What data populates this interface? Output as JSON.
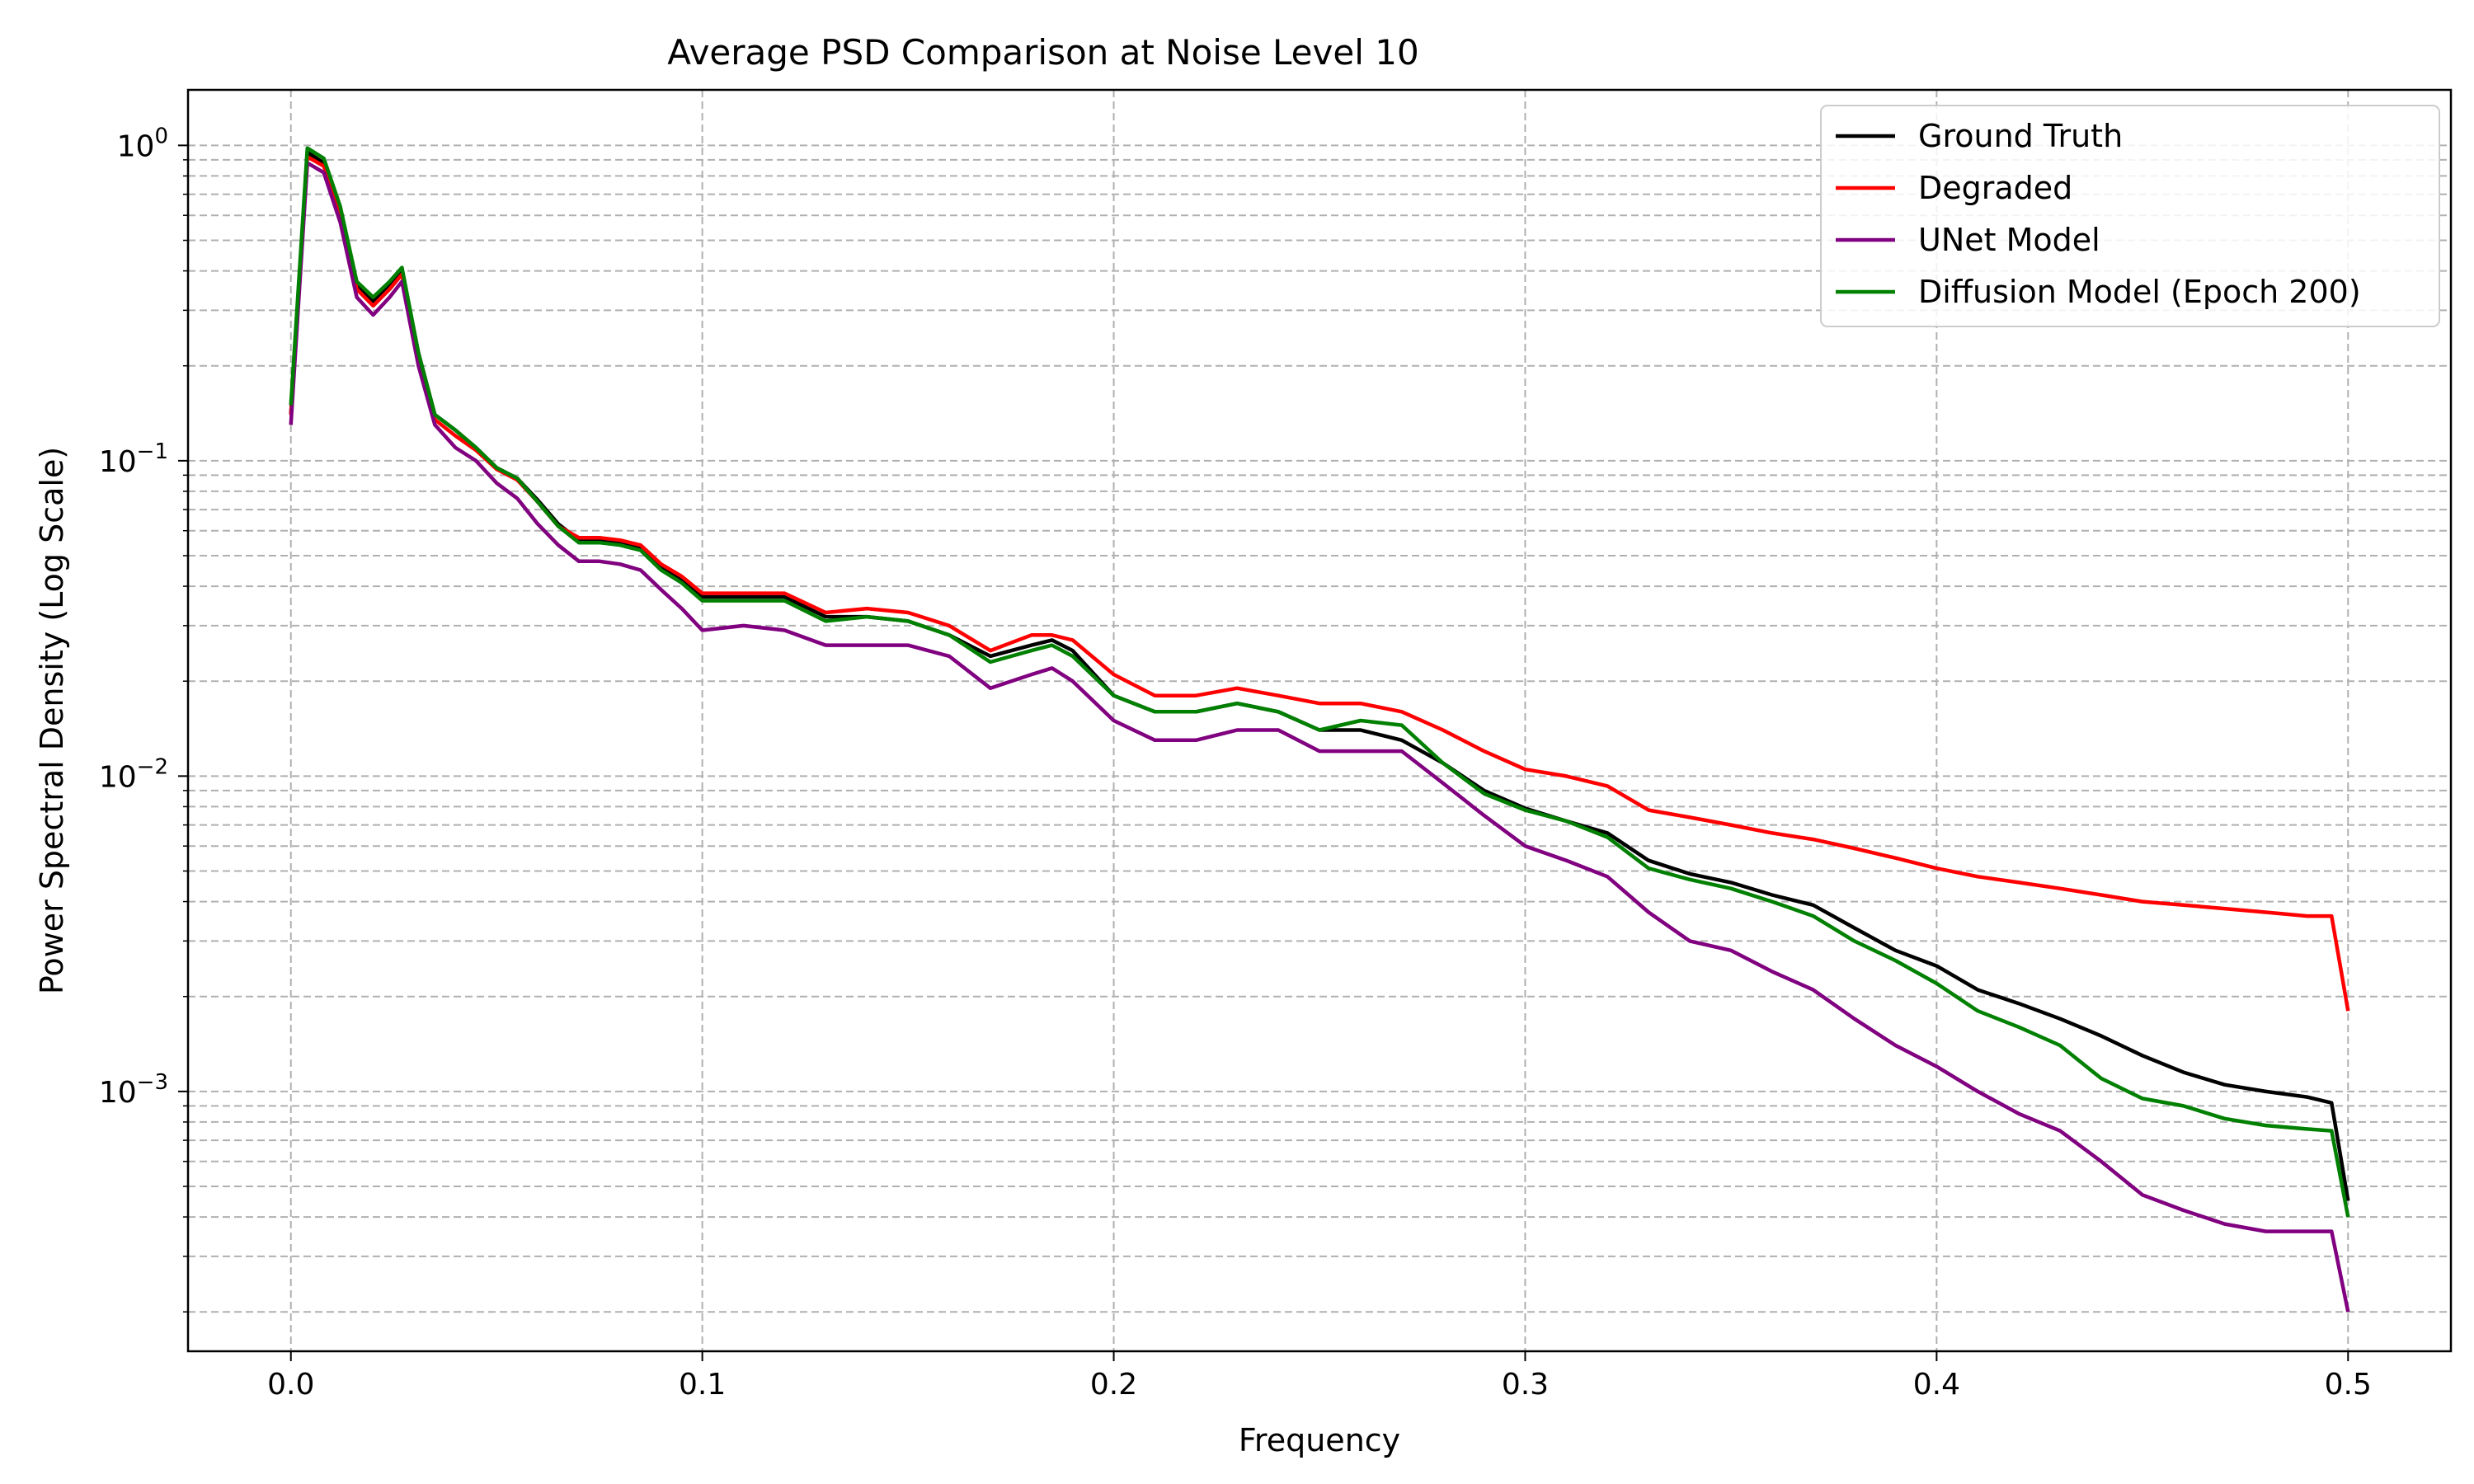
{
  "chart_data": {
    "type": "line",
    "title": "Average PSD Comparison at Noise Level 10",
    "xlabel": "Frequency",
    "ylabel": "Power Spectral Density (Log Scale)",
    "xlim": [
      -0.025,
      0.525
    ],
    "ylim": [
      0.00015,
      1.5
    ],
    "yscale": "log",
    "grid": true,
    "legend_position": "top-right",
    "x_ticks": [
      {
        "value": 0.0,
        "label": "0.0"
      },
      {
        "value": 0.1,
        "label": "0.1"
      },
      {
        "value": 0.2,
        "label": "0.2"
      },
      {
        "value": 0.3,
        "label": "0.3"
      },
      {
        "value": 0.4,
        "label": "0.4"
      },
      {
        "value": 0.5,
        "label": "0.5"
      }
    ],
    "y_ticks": [
      {
        "value": 1,
        "base": "10",
        "exp": "0"
      },
      {
        "value": 0.1,
        "base": "10",
        "exp": "−1"
      },
      {
        "value": 0.01,
        "base": "10",
        "exp": "−2"
      },
      {
        "value": 0.001,
        "base": "10",
        "exp": "−3"
      }
    ],
    "series": [
      {
        "name": "Ground Truth",
        "color": "#000000",
        "points": [
          [
            0.0,
            0.14
          ],
          [
            0.004,
            0.95
          ],
          [
            0.008,
            0.88
          ],
          [
            0.012,
            0.62
          ],
          [
            0.016,
            0.36
          ],
          [
            0.02,
            0.32
          ],
          [
            0.024,
            0.36
          ],
          [
            0.027,
            0.4
          ],
          [
            0.031,
            0.22
          ],
          [
            0.035,
            0.14
          ],
          [
            0.04,
            0.125
          ],
          [
            0.045,
            0.11
          ],
          [
            0.05,
            0.095
          ],
          [
            0.055,
            0.088
          ],
          [
            0.06,
            0.075
          ],
          [
            0.065,
            0.063
          ],
          [
            0.07,
            0.056
          ],
          [
            0.075,
            0.056
          ],
          [
            0.08,
            0.055
          ],
          [
            0.085,
            0.053
          ],
          [
            0.09,
            0.046
          ],
          [
            0.095,
            0.042
          ],
          [
            0.1,
            0.037
          ],
          [
            0.11,
            0.037
          ],
          [
            0.12,
            0.037
          ],
          [
            0.13,
            0.032
          ],
          [
            0.14,
            0.032
          ],
          [
            0.15,
            0.031
          ],
          [
            0.16,
            0.028
          ],
          [
            0.17,
            0.024
          ],
          [
            0.18,
            0.026
          ],
          [
            0.185,
            0.027
          ],
          [
            0.19,
            0.025
          ],
          [
            0.2,
            0.018
          ],
          [
            0.21,
            0.016
          ],
          [
            0.22,
            0.016
          ],
          [
            0.23,
            0.017
          ],
          [
            0.24,
            0.016
          ],
          [
            0.25,
            0.014
          ],
          [
            0.26,
            0.014
          ],
          [
            0.27,
            0.013
          ],
          [
            0.28,
            0.011
          ],
          [
            0.29,
            0.009
          ],
          [
            0.3,
            0.0079
          ],
          [
            0.31,
            0.0072
          ],
          [
            0.32,
            0.0066
          ],
          [
            0.33,
            0.0054
          ],
          [
            0.34,
            0.0049
          ],
          [
            0.35,
            0.0046
          ],
          [
            0.36,
            0.0042
          ],
          [
            0.37,
            0.0039
          ],
          [
            0.38,
            0.0033
          ],
          [
            0.39,
            0.0028
          ],
          [
            0.4,
            0.0025
          ],
          [
            0.41,
            0.0021
          ],
          [
            0.42,
            0.0019
          ],
          [
            0.43,
            0.0017
          ],
          [
            0.44,
            0.0015
          ],
          [
            0.45,
            0.0013
          ],
          [
            0.46,
            0.00115
          ],
          [
            0.47,
            0.00105
          ],
          [
            0.48,
            0.001
          ],
          [
            0.49,
            0.00096
          ],
          [
            0.496,
            0.00092
          ],
          [
            0.5,
            0.00045
          ]
        ]
      },
      {
        "name": "Degraded",
        "color": "#ff0000",
        "points": [
          [
            0.0,
            0.14
          ],
          [
            0.004,
            0.92
          ],
          [
            0.008,
            0.86
          ],
          [
            0.012,
            0.6
          ],
          [
            0.016,
            0.35
          ],
          [
            0.02,
            0.31
          ],
          [
            0.024,
            0.35
          ],
          [
            0.027,
            0.39
          ],
          [
            0.031,
            0.21
          ],
          [
            0.035,
            0.135
          ],
          [
            0.04,
            0.12
          ],
          [
            0.045,
            0.108
          ],
          [
            0.05,
            0.094
          ],
          [
            0.055,
            0.087
          ],
          [
            0.06,
            0.074
          ],
          [
            0.065,
            0.062
          ],
          [
            0.07,
            0.057
          ],
          [
            0.075,
            0.057
          ],
          [
            0.08,
            0.056
          ],
          [
            0.085,
            0.054
          ],
          [
            0.09,
            0.047
          ],
          [
            0.095,
            0.043
          ],
          [
            0.1,
            0.038
          ],
          [
            0.11,
            0.038
          ],
          [
            0.12,
            0.038
          ],
          [
            0.13,
            0.033
          ],
          [
            0.14,
            0.034
          ],
          [
            0.15,
            0.033
          ],
          [
            0.16,
            0.03
          ],
          [
            0.17,
            0.025
          ],
          [
            0.18,
            0.028
          ],
          [
            0.185,
            0.028
          ],
          [
            0.19,
            0.027
          ],
          [
            0.2,
            0.021
          ],
          [
            0.21,
            0.018
          ],
          [
            0.22,
            0.018
          ],
          [
            0.23,
            0.019
          ],
          [
            0.24,
            0.018
          ],
          [
            0.25,
            0.017
          ],
          [
            0.26,
            0.017
          ],
          [
            0.27,
            0.016
          ],
          [
            0.28,
            0.014
          ],
          [
            0.29,
            0.012
          ],
          [
            0.3,
            0.0105
          ],
          [
            0.31,
            0.01
          ],
          [
            0.32,
            0.0093
          ],
          [
            0.33,
            0.0078
          ],
          [
            0.34,
            0.0074
          ],
          [
            0.35,
            0.007
          ],
          [
            0.36,
            0.0066
          ],
          [
            0.37,
            0.0063
          ],
          [
            0.38,
            0.0059
          ],
          [
            0.39,
            0.0055
          ],
          [
            0.4,
            0.0051
          ],
          [
            0.41,
            0.0048
          ],
          [
            0.42,
            0.0046
          ],
          [
            0.43,
            0.0044
          ],
          [
            0.44,
            0.0042
          ],
          [
            0.45,
            0.004
          ],
          [
            0.46,
            0.0039
          ],
          [
            0.47,
            0.0038
          ],
          [
            0.48,
            0.0037
          ],
          [
            0.49,
            0.0036
          ],
          [
            0.496,
            0.0036
          ],
          [
            0.5,
            0.0018
          ]
        ]
      },
      {
        "name": "UNet Model",
        "color": "#800080",
        "points": [
          [
            0.0,
            0.13
          ],
          [
            0.004,
            0.88
          ],
          [
            0.008,
            0.82
          ],
          [
            0.012,
            0.57
          ],
          [
            0.016,
            0.33
          ],
          [
            0.02,
            0.29
          ],
          [
            0.024,
            0.33
          ],
          [
            0.027,
            0.37
          ],
          [
            0.031,
            0.2
          ],
          [
            0.035,
            0.13
          ],
          [
            0.04,
            0.11
          ],
          [
            0.045,
            0.1
          ],
          [
            0.05,
            0.085
          ],
          [
            0.055,
            0.076
          ],
          [
            0.06,
            0.063
          ],
          [
            0.065,
            0.054
          ],
          [
            0.07,
            0.048
          ],
          [
            0.075,
            0.048
          ],
          [
            0.08,
            0.047
          ],
          [
            0.085,
            0.045
          ],
          [
            0.09,
            0.039
          ],
          [
            0.095,
            0.034
          ],
          [
            0.1,
            0.029
          ],
          [
            0.11,
            0.03
          ],
          [
            0.12,
            0.029
          ],
          [
            0.13,
            0.026
          ],
          [
            0.14,
            0.026
          ],
          [
            0.15,
            0.026
          ],
          [
            0.16,
            0.024
          ],
          [
            0.17,
            0.019
          ],
          [
            0.18,
            0.021
          ],
          [
            0.185,
            0.022
          ],
          [
            0.19,
            0.02
          ],
          [
            0.2,
            0.015
          ],
          [
            0.21,
            0.013
          ],
          [
            0.22,
            0.013
          ],
          [
            0.23,
            0.014
          ],
          [
            0.24,
            0.014
          ],
          [
            0.25,
            0.012
          ],
          [
            0.26,
            0.012
          ],
          [
            0.27,
            0.012
          ],
          [
            0.28,
            0.0095
          ],
          [
            0.29,
            0.0075
          ],
          [
            0.3,
            0.006
          ],
          [
            0.31,
            0.0054
          ],
          [
            0.32,
            0.0048
          ],
          [
            0.33,
            0.0037
          ],
          [
            0.34,
            0.003
          ],
          [
            0.35,
            0.0028
          ],
          [
            0.36,
            0.0024
          ],
          [
            0.37,
            0.0021
          ],
          [
            0.38,
            0.0017
          ],
          [
            0.39,
            0.0014
          ],
          [
            0.4,
            0.0012
          ],
          [
            0.41,
            0.001
          ],
          [
            0.42,
            0.00085
          ],
          [
            0.43,
            0.00075
          ],
          [
            0.44,
            0.0006
          ],
          [
            0.45,
            0.00047
          ],
          [
            0.46,
            0.00042
          ],
          [
            0.47,
            0.00038
          ],
          [
            0.48,
            0.00036
          ],
          [
            0.49,
            0.00036
          ],
          [
            0.496,
            0.00036
          ],
          [
            0.5,
            0.0002
          ]
        ]
      },
      {
        "name": "Diffusion Model (Epoch 200)",
        "color": "#008000",
        "points": [
          [
            0.0,
            0.15
          ],
          [
            0.004,
            0.98
          ],
          [
            0.008,
            0.91
          ],
          [
            0.012,
            0.64
          ],
          [
            0.016,
            0.37
          ],
          [
            0.02,
            0.33
          ],
          [
            0.024,
            0.37
          ],
          [
            0.027,
            0.41
          ],
          [
            0.031,
            0.22
          ],
          [
            0.035,
            0.14
          ],
          [
            0.04,
            0.125
          ],
          [
            0.045,
            0.11
          ],
          [
            0.05,
            0.095
          ],
          [
            0.055,
            0.088
          ],
          [
            0.06,
            0.074
          ],
          [
            0.065,
            0.062
          ],
          [
            0.07,
            0.055
          ],
          [
            0.075,
            0.055
          ],
          [
            0.08,
            0.054
          ],
          [
            0.085,
            0.052
          ],
          [
            0.09,
            0.045
          ],
          [
            0.095,
            0.041
          ],
          [
            0.1,
            0.036
          ],
          [
            0.11,
            0.036
          ],
          [
            0.12,
            0.036
          ],
          [
            0.13,
            0.031
          ],
          [
            0.14,
            0.032
          ],
          [
            0.15,
            0.031
          ],
          [
            0.16,
            0.028
          ],
          [
            0.17,
            0.023
          ],
          [
            0.18,
            0.025
          ],
          [
            0.185,
            0.026
          ],
          [
            0.19,
            0.024
          ],
          [
            0.2,
            0.018
          ],
          [
            0.21,
            0.016
          ],
          [
            0.22,
            0.016
          ],
          [
            0.23,
            0.017
          ],
          [
            0.24,
            0.016
          ],
          [
            0.25,
            0.014
          ],
          [
            0.26,
            0.015
          ],
          [
            0.27,
            0.0145
          ],
          [
            0.28,
            0.011
          ],
          [
            0.29,
            0.0088
          ],
          [
            0.3,
            0.0078
          ],
          [
            0.31,
            0.0072
          ],
          [
            0.32,
            0.0064
          ],
          [
            0.33,
            0.0051
          ],
          [
            0.34,
            0.0047
          ],
          [
            0.35,
            0.0044
          ],
          [
            0.36,
            0.004
          ],
          [
            0.37,
            0.0036
          ],
          [
            0.38,
            0.003
          ],
          [
            0.39,
            0.0026
          ],
          [
            0.4,
            0.0022
          ],
          [
            0.41,
            0.0018
          ],
          [
            0.42,
            0.0016
          ],
          [
            0.43,
            0.0014
          ],
          [
            0.44,
            0.0011
          ],
          [
            0.45,
            0.00095
          ],
          [
            0.46,
            0.0009
          ],
          [
            0.47,
            0.00082
          ],
          [
            0.48,
            0.00078
          ],
          [
            0.49,
            0.00076
          ],
          [
            0.496,
            0.00075
          ],
          [
            0.5,
            0.0004
          ]
        ]
      }
    ]
  }
}
